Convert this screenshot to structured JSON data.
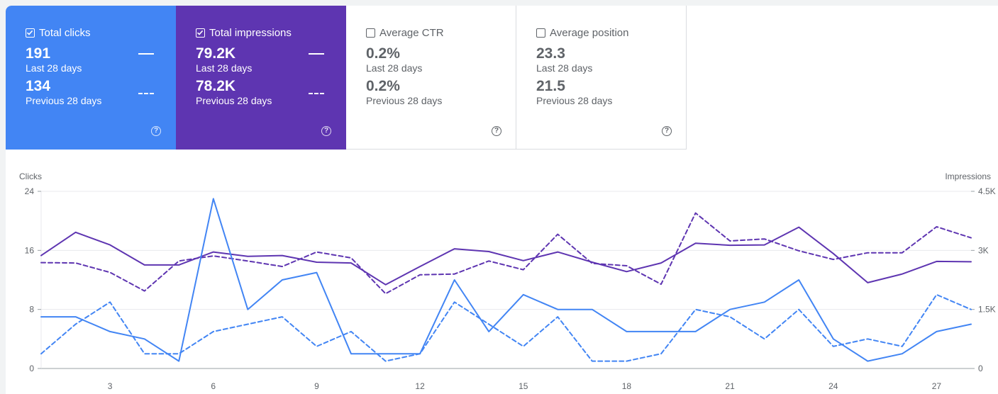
{
  "cards": [
    {
      "label": "Total clicks",
      "checked": true,
      "value": "191",
      "period": "Last 28 days",
      "prev_value": "134",
      "prev_period": "Previous 28 days",
      "color": "#4285f4"
    },
    {
      "label": "Total impressions",
      "checked": true,
      "value": "79.2K",
      "period": "Last 28 days",
      "prev_value": "78.2K",
      "prev_period": "Previous 28 days",
      "color": "#5e35b1"
    },
    {
      "label": "Average CTR",
      "checked": false,
      "value": "0.2%",
      "period": "Last 28 days",
      "prev_value": "0.2%",
      "prev_period": "Previous 28 days"
    },
    {
      "label": "Average position",
      "checked": false,
      "value": "23.3",
      "period": "Last 28 days",
      "prev_value": "21.5",
      "prev_period": "Previous 28 days"
    }
  ],
  "chart_data": {
    "type": "line",
    "x": [
      1,
      2,
      3,
      4,
      5,
      6,
      7,
      8,
      9,
      10,
      11,
      12,
      13,
      14,
      15,
      16,
      17,
      18,
      19,
      20,
      21,
      22,
      23,
      24,
      25,
      26,
      27,
      28
    ],
    "x_tick_labels": [
      "3",
      "6",
      "9",
      "12",
      "15",
      "18",
      "21",
      "24",
      "27"
    ],
    "x_tick_values": [
      3,
      6,
      9,
      12,
      15,
      18,
      21,
      24,
      27
    ],
    "y_left": {
      "label": "Clicks",
      "ticks": [
        "0",
        "8",
        "16",
        "24"
      ],
      "tick_values": [
        0,
        8,
        16,
        24
      ],
      "range": [
        0,
        24
      ]
    },
    "y_right": {
      "label": "Impressions",
      "ticks": [
        "0",
        "1.5K",
        "3K",
        "4.5K"
      ],
      "tick_values": [
        0,
        1500,
        3000,
        4500
      ],
      "range": [
        0,
        4500
      ]
    },
    "grid": true,
    "series": [
      {
        "axis": "left",
        "style": "solid",
        "color": "#4285f4",
        "values": [
          7,
          7,
          5,
          4,
          1,
          23,
          8,
          12,
          13,
          2,
          2,
          2,
          12,
          5,
          10,
          8,
          8,
          5,
          5,
          5,
          8,
          9,
          12,
          4,
          1,
          2,
          5,
          6
        ]
      },
      {
        "axis": "left",
        "style": "dashed",
        "color": "#4285f4",
        "values": [
          2,
          6,
          9,
          2,
          2,
          5,
          6,
          7,
          3,
          5,
          1,
          2,
          9,
          6,
          3,
          7,
          1,
          1,
          2,
          8,
          7,
          4,
          8,
          3,
          4,
          3,
          10,
          8
        ]
      },
      {
        "axis": "right",
        "style": "solid",
        "color": "#5e35b1",
        "values": [
          2870,
          3460,
          3140,
          2630,
          2630,
          2960,
          2850,
          2870,
          2700,
          2680,
          2130,
          2590,
          3040,
          2970,
          2740,
          2960,
          2700,
          2460,
          2680,
          3180,
          3130,
          3140,
          3590,
          2920,
          2180,
          2400,
          2720,
          2710
        ]
      },
      {
        "axis": "right",
        "style": "dashed",
        "color": "#5e35b1",
        "values": [
          2690,
          2680,
          2440,
          1970,
          2730,
          2860,
          2730,
          2590,
          2960,
          2810,
          1900,
          2380,
          2400,
          2730,
          2510,
          3410,
          2670,
          2610,
          2140,
          3950,
          3240,
          3290,
          2990,
          2770,
          2940,
          2940,
          3600,
          3320
        ]
      }
    ]
  }
}
